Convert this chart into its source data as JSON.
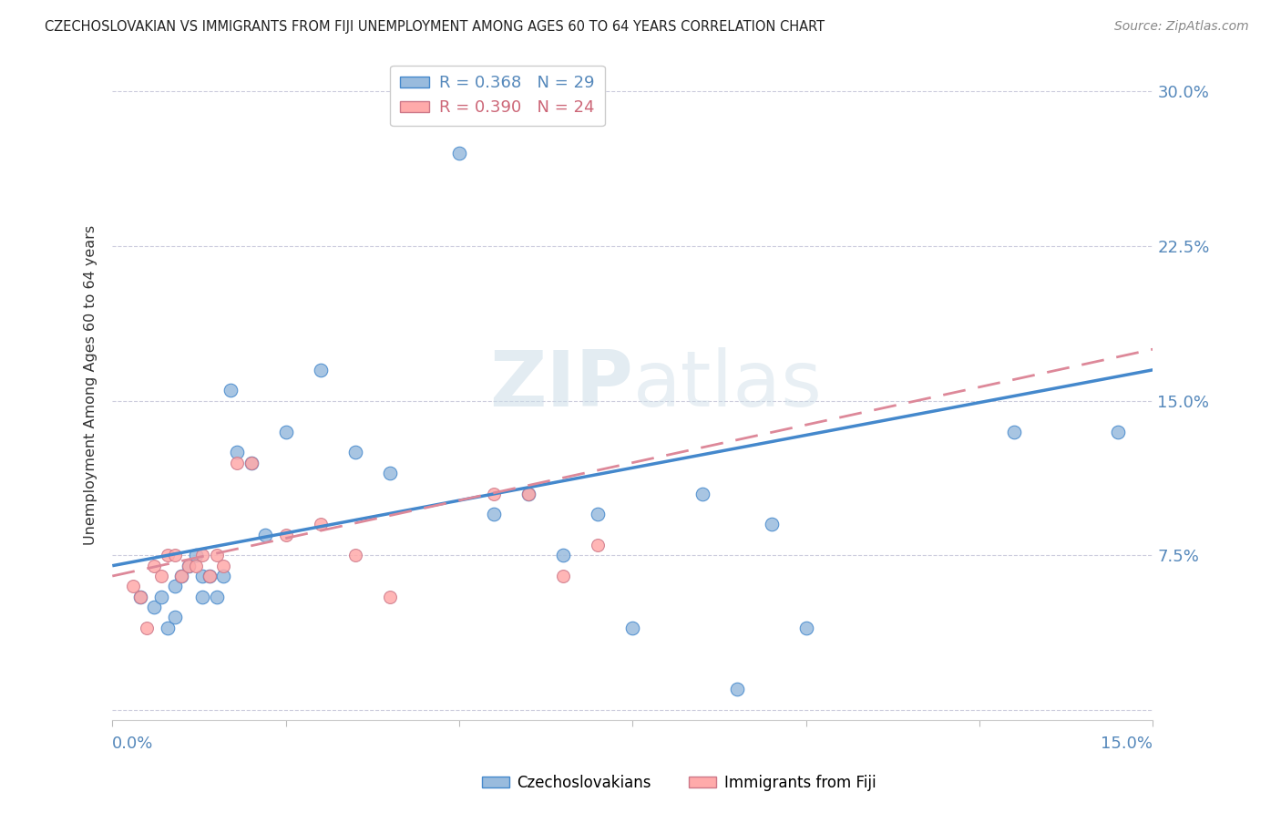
{
  "title": "CZECHOSLOVAKIAN VS IMMIGRANTS FROM FIJI UNEMPLOYMENT AMONG AGES 60 TO 64 YEARS CORRELATION CHART",
  "source": "Source: ZipAtlas.com",
  "ylabel": "Unemployment Among Ages 60 to 64 years",
  "yticks": [
    0.0,
    0.075,
    0.15,
    0.225,
    0.3
  ],
  "ytick_labels": [
    "",
    "7.5%",
    "15.0%",
    "22.5%",
    "30.0%"
  ],
  "xlim": [
    0.0,
    0.15
  ],
  "ylim": [
    -0.005,
    0.32
  ],
  "blue_color": "#99BBDD",
  "pink_color": "#FFAAAA",
  "line_blue": "#4488CC",
  "line_pink": "#DD8899",
  "watermark_zip": "ZIP",
  "watermark_atlas": "atlas",
  "czechoslovakian_x": [
    0.004,
    0.006,
    0.007,
    0.008,
    0.009,
    0.009,
    0.01,
    0.011,
    0.012,
    0.013,
    0.013,
    0.014,
    0.015,
    0.016,
    0.017,
    0.018,
    0.02,
    0.022,
    0.025,
    0.03,
    0.035,
    0.04,
    0.05,
    0.055,
    0.06,
    0.065,
    0.07,
    0.075,
    0.085,
    0.09,
    0.095,
    0.1,
    0.13,
    0.145
  ],
  "czechoslovakian_y": [
    0.055,
    0.05,
    0.055,
    0.04,
    0.06,
    0.045,
    0.065,
    0.07,
    0.075,
    0.065,
    0.055,
    0.065,
    0.055,
    0.065,
    0.155,
    0.125,
    0.12,
    0.085,
    0.135,
    0.165,
    0.125,
    0.115,
    0.27,
    0.095,
    0.105,
    0.075,
    0.095,
    0.04,
    0.105,
    0.01,
    0.09,
    0.04,
    0.135,
    0.135
  ],
  "fiji_x": [
    0.003,
    0.004,
    0.005,
    0.006,
    0.007,
    0.008,
    0.009,
    0.01,
    0.011,
    0.012,
    0.013,
    0.014,
    0.015,
    0.016,
    0.018,
    0.02,
    0.025,
    0.03,
    0.035,
    0.04,
    0.055,
    0.06,
    0.065,
    0.07
  ],
  "fiji_y": [
    0.06,
    0.055,
    0.04,
    0.07,
    0.065,
    0.075,
    0.075,
    0.065,
    0.07,
    0.07,
    0.075,
    0.065,
    0.075,
    0.07,
    0.12,
    0.12,
    0.085,
    0.09,
    0.075,
    0.055,
    0.105,
    0.105,
    0.065,
    0.08
  ],
  "blue_trend_x": [
    0.0,
    0.15
  ],
  "blue_trend_y": [
    0.07,
    0.165
  ],
  "pink_trend_x": [
    0.0,
    0.15
  ],
  "pink_trend_y": [
    0.065,
    0.175
  ],
  "grid_color": "#CCCCDD",
  "axis_label_color": "#5588BB",
  "title_color": "#222222"
}
